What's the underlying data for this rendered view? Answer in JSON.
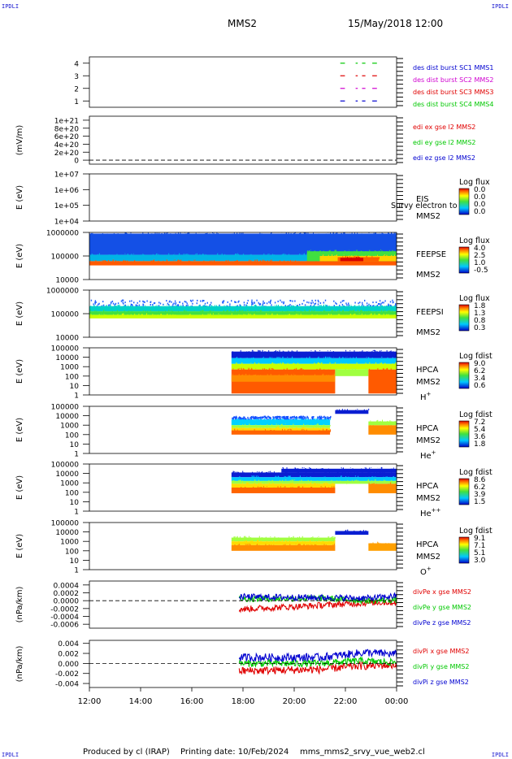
{
  "corners": {
    "tl": "IPDLI",
    "tr": "IPDLI",
    "bl": "IPDLI",
    "br": "IPDLI"
  },
  "header": {
    "spacecraft": "MMS2",
    "datetime": "15/May/2018 12:00"
  },
  "footer": {
    "produced_by": "Produced by cl (IRAP)",
    "printing_date": "Printing date: 10/Feb/2024",
    "script": "mms_mms2_srvy_vue_web2.cl"
  },
  "colors": {
    "red": "#e00000",
    "green": "#00c800",
    "blue": "#0000d0",
    "magenta": "#d000d0",
    "orange": "#ff6000"
  },
  "chart_data": [
    {
      "type": "line",
      "ylim": [
        0.5,
        4.5
      ],
      "ticks": [
        "4",
        "3",
        "2",
        "1"
      ],
      "tick_values": [
        4,
        3,
        2,
        1
      ],
      "series": [
        {
          "name": "des dist burst SC1 MMS1",
          "color": "#0000d0",
          "level": 1,
          "segments": [
            [
              21.8,
              21.95
            ],
            [
              22.4,
              22.45
            ],
            [
              22.65,
              22.75
            ],
            [
              23.05,
              23.2
            ]
          ]
        },
        {
          "name": "des dist burst SC2 MMS2",
          "color": "#d000d0",
          "level": 2,
          "segments": [
            [
              21.8,
              21.95
            ],
            [
              22.4,
              22.45
            ],
            [
              22.65,
              22.75
            ],
            [
              23.05,
              23.2
            ]
          ]
        },
        {
          "name": "des dist burst SC3 MMS3",
          "color": "#e00000",
          "level": 3,
          "segments": [
            [
              21.8,
              21.95
            ],
            [
              22.4,
              22.45
            ],
            [
              22.65,
              22.75
            ],
            [
              23.05,
              23.2
            ]
          ]
        },
        {
          "name": "des dist burst SC4 MMS4",
          "color": "#00c800",
          "level": 4,
          "segments": [
            [
              21.8,
              21.95
            ],
            [
              22.4,
              22.45
            ],
            [
              22.65,
              22.75
            ],
            [
              23.05,
              23.2
            ]
          ]
        }
      ]
    },
    {
      "type": "line",
      "ylabel": "(mV/m)",
      "ticks": [
        "1e+21",
        "8e+20",
        "6e+20",
        "4e+20",
        "2e+20",
        "0"
      ],
      "tick_values": [
        1e+21,
        8e+20,
        6e+20,
        4e+20,
        2e+20,
        0
      ],
      "ylim": [
        -1e+20,
        1.1e+21
      ],
      "zero_line": true,
      "series": [
        {
          "name": "edi ex gse l2 MMS2",
          "color": "#e00000"
        },
        {
          "name": "edi ey gse l2 MMS2",
          "color": "#00c800"
        },
        {
          "name": "edi ez gse l2 MMS2",
          "color": "#0000d0"
        }
      ]
    },
    {
      "type": "heatmap",
      "ylabel": "E (eV)",
      "ticks": [
        "1e+07",
        "1e+06",
        "1e+05",
        "1e+04"
      ],
      "tick_values": [
        7,
        6,
        5,
        4
      ],
      "ylim": [
        4,
        7
      ],
      "instrument": "EIS",
      "overlay_text": "Survy electron to",
      "spacecraft": "MMS2",
      "colorbar_title": "Log flux",
      "colorbar_ticks": [
        "0.0",
        "0.0",
        "0.0",
        "0.0"
      ]
    },
    {
      "type": "heatmap",
      "ylabel": "E (eV)",
      "ticks": [
        "1000000",
        "100000",
        "10000"
      ],
      "tick_values": [
        6,
        5,
        4
      ],
      "ylim": [
        4,
        6
      ],
      "instrument": "FEEPSE",
      "spacecraft": "MMS2",
      "colorbar_title": "Log flux",
      "colorbar_ticks": [
        "4.0",
        "2.5",
        "1.0",
        "-0.5"
      ],
      "bands": [
        {
          "t0": 12.0,
          "t1": 24.0,
          "e0": 5.05,
          "e1": 5.95,
          "color": "#1450e6"
        },
        {
          "t0": 12.0,
          "t1": 24.0,
          "e0": 4.78,
          "e1": 5.05,
          "color": "#00b4e6"
        },
        {
          "t0": 12.0,
          "t1": 24.0,
          "e0": 4.6,
          "e1": 4.78,
          "color": "#ff5a00"
        },
        {
          "t0": 20.5,
          "t1": 24.0,
          "e0": 4.78,
          "e1": 5.2,
          "color": "#40e040"
        },
        {
          "t0": 21.0,
          "t1": 24.0,
          "e0": 4.78,
          "e1": 5.0,
          "color": "#ffd000"
        },
        {
          "t0": 21.7,
          "t1": 23.3,
          "e0": 4.78,
          "e1": 4.95,
          "color": "#ff6000"
        },
        {
          "t0": 21.8,
          "t1": 22.7,
          "e0": 4.78,
          "e1": 4.92,
          "color": "#d80000"
        }
      ]
    },
    {
      "type": "heatmap",
      "ylabel": "E (eV)",
      "ticks": [
        "1000000",
        "100000",
        "10000"
      ],
      "tick_values": [
        6,
        5,
        4
      ],
      "ylim": [
        4,
        6
      ],
      "instrument": "FEEPSI",
      "spacecraft": "MMS2",
      "colorbar_title": "Log flux",
      "colorbar_ticks": [
        "1.8",
        "1.3",
        "0.8",
        "0.3"
      ],
      "bands": [
        {
          "t0": 12.0,
          "t1": 24.0,
          "e0": 5.32,
          "e1": 5.6,
          "color": "#2060ff",
          "sparse": true
        },
        {
          "t0": 12.0,
          "t1": 24.0,
          "e0": 5.1,
          "e1": 5.32,
          "color": "#00d2c8"
        },
        {
          "t0": 12.0,
          "t1": 24.0,
          "e0": 4.95,
          "e1": 5.1,
          "color": "#40e040"
        },
        {
          "t0": 12.0,
          "t1": 24.0,
          "e0": 4.8,
          "e1": 4.95,
          "color": "#c8ff00"
        }
      ]
    },
    {
      "type": "heatmap",
      "ylabel": "E (eV)",
      "ticks": [
        "100000",
        "10000",
        "1000",
        "100",
        "10",
        "1"
      ],
      "tick_values": [
        5,
        4,
        3,
        2,
        1,
        0
      ],
      "ylim": [
        0,
        5
      ],
      "instrument": "HPCA",
      "spacecraft": "MMS2",
      "species": "H",
      "species_charge": "+",
      "colorbar_title": "Log fdist",
      "colorbar_ticks": [
        "9.0",
        "6.2",
        "3.4",
        "0.6"
      ],
      "bands": [
        {
          "t0": 17.55,
          "t1": 24.0,
          "e0": 3.9,
          "e1": 4.6,
          "color": "#0a1ed2"
        },
        {
          "t0": 17.55,
          "t1": 24.0,
          "e0": 3.3,
          "e1": 3.9,
          "color": "#00c8ff"
        },
        {
          "t0": 17.55,
          "t1": 24.0,
          "e0": 2.7,
          "e1": 3.3,
          "color": "#c8ff00"
        },
        {
          "t0": 17.55,
          "t1": 21.6,
          "e0": 0.15,
          "e1": 2.7,
          "color": "#ff5a00"
        },
        {
          "t0": 17.55,
          "t1": 21.6,
          "e0": 1.4,
          "e1": 2.1,
          "color": "#ff8c00"
        },
        {
          "t0": 21.6,
          "t1": 22.9,
          "e0": 2.0,
          "e1": 2.7,
          "color": "#a0ff40"
        },
        {
          "t0": 22.9,
          "t1": 24.0,
          "e0": 0.15,
          "e1": 2.7,
          "color": "#ff5a00"
        }
      ]
    },
    {
      "type": "heatmap",
      "ylabel": "E (eV)",
      "ticks": [
        "100000",
        "10000",
        "1000",
        "100",
        "10",
        "1"
      ],
      "tick_values": [
        5,
        4,
        3,
        2,
        1,
        0
      ],
      "ylim": [
        0,
        5
      ],
      "instrument": "HPCA",
      "spacecraft": "MMS2",
      "species": "He",
      "species_charge": "+",
      "colorbar_title": "Log fdist",
      "colorbar_ticks": [
        "7.2",
        "5.4",
        "3.6",
        "1.8"
      ],
      "bands": [
        {
          "t0": 17.55,
          "t1": 21.4,
          "e0": 3.6,
          "e1": 4.0,
          "color": "#1450ff",
          "sparse": true
        },
        {
          "t0": 17.55,
          "t1": 21.4,
          "e0": 3.0,
          "e1": 3.6,
          "color": "#00d2ff"
        },
        {
          "t0": 17.55,
          "t1": 21.4,
          "e0": 2.7,
          "e1": 3.0,
          "color": "#a0ff40"
        },
        {
          "t0": 17.55,
          "t1": 21.4,
          "e0": 2.45,
          "e1": 2.7,
          "color": "#ffdc00"
        },
        {
          "t0": 17.55,
          "t1": 21.4,
          "e0": 2.0,
          "e1": 2.45,
          "color": "#ff6400"
        },
        {
          "t0": 21.6,
          "t1": 22.9,
          "e0": 4.2,
          "e1": 4.6,
          "color": "#0a1ed2"
        },
        {
          "t0": 22.9,
          "t1": 24.0,
          "e0": 2.0,
          "e1": 3.0,
          "color": "#ff8c00"
        },
        {
          "t0": 22.9,
          "t1": 24.0,
          "e0": 3.0,
          "e1": 3.4,
          "color": "#a0ff40"
        }
      ]
    },
    {
      "type": "heatmap",
      "ylabel": "E (eV)",
      "ticks": [
        "100000",
        "10000",
        "1000",
        "100",
        "10",
        "1"
      ],
      "tick_values": [
        5,
        4,
        3,
        2,
        1,
        0
      ],
      "ylim": [
        0,
        5
      ],
      "instrument": "HPCA",
      "spacecraft": "MMS2",
      "species": "He",
      "species_charge": "++",
      "colorbar_title": "Log fdist",
      "colorbar_ticks": [
        "8.6",
        "6.2",
        "3.9",
        "1.5"
      ],
      "bands": [
        {
          "t0": 17.55,
          "t1": 24.0,
          "e0": 3.6,
          "e1": 4.1,
          "color": "#0a1ed2"
        },
        {
          "t0": 17.55,
          "t1": 24.0,
          "e0": 3.2,
          "e1": 3.6,
          "color": "#00c8ff"
        },
        {
          "t0": 17.55,
          "t1": 24.0,
          "e0": 2.9,
          "e1": 3.2,
          "color": "#a0ff40"
        },
        {
          "t0": 17.55,
          "t1": 21.6,
          "e0": 2.5,
          "e1": 2.9,
          "color": "#ffdc00"
        },
        {
          "t0": 17.55,
          "t1": 21.6,
          "e0": 1.9,
          "e1": 2.5,
          "color": "#ff6400"
        },
        {
          "t0": 22.9,
          "t1": 24.0,
          "e0": 1.9,
          "e1": 2.9,
          "color": "#ff8c00"
        },
        {
          "t0": 19.5,
          "t1": 24.0,
          "e0": 4.1,
          "e1": 4.5,
          "color": "#0a1ed2"
        }
      ]
    },
    {
      "type": "heatmap",
      "ylabel": "E (eV)",
      "ticks": [
        "100000",
        "10000",
        "1000",
        "100",
        "10",
        "1"
      ],
      "tick_values": [
        5,
        4,
        3,
        2,
        1,
        0
      ],
      "ylim": [
        0,
        5
      ],
      "instrument": "HPCA",
      "spacecraft": "MMS2",
      "species": "O",
      "species_charge": "+",
      "colorbar_title": "Log fdist",
      "colorbar_ticks": [
        "9.1",
        "7.1",
        "5.1",
        "3.0"
      ],
      "bands": [
        {
          "t0": 17.55,
          "t1": 21.6,
          "e0": 3.0,
          "e1": 3.4,
          "color": "#a0ff40"
        },
        {
          "t0": 17.55,
          "t1": 21.6,
          "e0": 2.6,
          "e1": 3.0,
          "color": "#ffdc00"
        },
        {
          "t0": 17.55,
          "t1": 21.6,
          "e0": 2.0,
          "e1": 2.6,
          "color": "#ff8c00"
        },
        {
          "t0": 21.6,
          "t1": 22.9,
          "e0": 3.7,
          "e1": 4.1,
          "color": "#0a1ed2"
        },
        {
          "t0": 22.9,
          "t1": 24.0,
          "e0": 2.0,
          "e1": 2.8,
          "color": "#ffa000"
        }
      ]
    },
    {
      "type": "line",
      "ylabel": "(nPa/km)",
      "ticks": [
        "0.0004",
        "0.0002",
        "0.0000",
        "-0.0002",
        "-0.0004",
        "-0.0006"
      ],
      "tick_values": [
        0.0004,
        0.0002,
        0.0,
        -0.0002,
        -0.0004,
        -0.0006
      ],
      "ylim": [
        -0.0007,
        0.0005
      ],
      "zero_line": true,
      "series": [
        {
          "name": "divPe x gse MMS2",
          "color": "#e00000",
          "start": 17.85,
          "mean": [
            [
              17.85,
              -0.00022
            ],
            [
              21.0,
              -0.00012
            ],
            [
              23.0,
              -5e-05
            ],
            [
              24.0,
              -4e-05
            ]
          ],
          "spread": 8e-05
        },
        {
          "name": "divPe y gse MMS2",
          "color": "#00c800",
          "start": 17.85,
          "mean": [
            [
              17.85,
              5e-05
            ],
            [
              21.0,
              6e-05
            ],
            [
              23.0,
              0.0
            ],
            [
              24.0,
              2e-05
            ]
          ],
          "spread": 8e-05
        },
        {
          "name": "divPe z gse MMS2",
          "color": "#0000d0",
          "start": 17.85,
          "mean": [
            [
              17.85,
              0.0001
            ],
            [
              21.0,
              8e-05
            ],
            [
              23.0,
              6e-05
            ],
            [
              24.0,
              0.00012
            ]
          ],
          "spread": 8e-05
        }
      ]
    },
    {
      "type": "line",
      "ylabel": "(nPa/km)",
      "ticks": [
        "0.004",
        "0.002",
        "0.000",
        "-0.002",
        "-0.004"
      ],
      "tick_values": [
        0.004,
        0.002,
        0.0,
        -0.002,
        -0.004
      ],
      "ylim": [
        -0.0048,
        0.0046
      ],
      "zero_line": true,
      "series": [
        {
          "name": "divPi x gse MMS2",
          "color": "#e00000",
          "start": 17.85,
          "mean": [
            [
              17.85,
              -0.0015
            ],
            [
              21.0,
              -0.0012
            ],
            [
              22.5,
              -0.0005
            ],
            [
              24.0,
              -0.0003
            ]
          ],
          "spread": 0.0008
        },
        {
          "name": "divPi y gse MMS2",
          "color": "#00c800",
          "start": 17.85,
          "mean": [
            [
              17.85,
              0.0
            ],
            [
              21.0,
              0.0
            ],
            [
              22.5,
              0.0005
            ],
            [
              24.0,
              0.0002
            ]
          ],
          "spread": 0.0007
        },
        {
          "name": "divPi z gse MMS2",
          "color": "#0000d0",
          "start": 17.85,
          "mean": [
            [
              17.85,
              0.0012
            ],
            [
              21.0,
              0.0012
            ],
            [
              22.8,
              0.0022
            ],
            [
              24.0,
              0.0018
            ]
          ],
          "spread": 0.0008
        }
      ]
    }
  ],
  "x_axis": {
    "type": "time",
    "ticks": [
      "12:00",
      "14:00",
      "16:00",
      "18:00",
      "20:00",
      "22:00",
      "00:00"
    ],
    "tick_hours": [
      12,
      14,
      16,
      18,
      20,
      22,
      24
    ],
    "range": [
      12,
      24
    ]
  }
}
